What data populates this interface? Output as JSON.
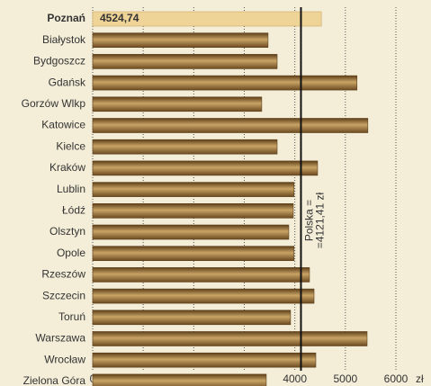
{
  "chart_data": {
    "type": "bar",
    "orientation": "horizontal",
    "categories": [
      "Poznań",
      "Białystok",
      "Bydgoszcz",
      "Gdańsk",
      "Gorzów Wlkp",
      "Katowice",
      "Kielce",
      "Kraków",
      "Lublin",
      "Łódź",
      "Olsztyn",
      "Opole",
      "Rzeszów",
      "Szczecin",
      "Toruń",
      "Warszawa",
      "Wrocław",
      "Zielona Góra"
    ],
    "values": [
      4524.74,
      3470,
      3650,
      5230,
      3345,
      5445,
      3650,
      4450,
      3985,
      3970,
      3880,
      3985,
      4290,
      4380,
      3915,
      5430,
      4415,
      3435
    ],
    "value_labels": [
      "4524,74",
      null,
      null,
      null,
      null,
      null,
      null,
      null,
      null,
      null,
      null,
      null,
      null,
      null,
      null,
      null,
      null,
      null
    ],
    "highlight": 0,
    "color": "#8a6430",
    "highlight_color": "#efd497",
    "xlim": [
      0,
      6000
    ],
    "xticks": [
      0,
      1000,
      2000,
      3000,
      4000,
      5000,
      6000
    ],
    "x_unit": "zł",
    "grid": true,
    "reference_line": {
      "value": 4121.41,
      "label_lines": [
        "Polska =",
        "=4121,41 zł"
      ]
    }
  }
}
